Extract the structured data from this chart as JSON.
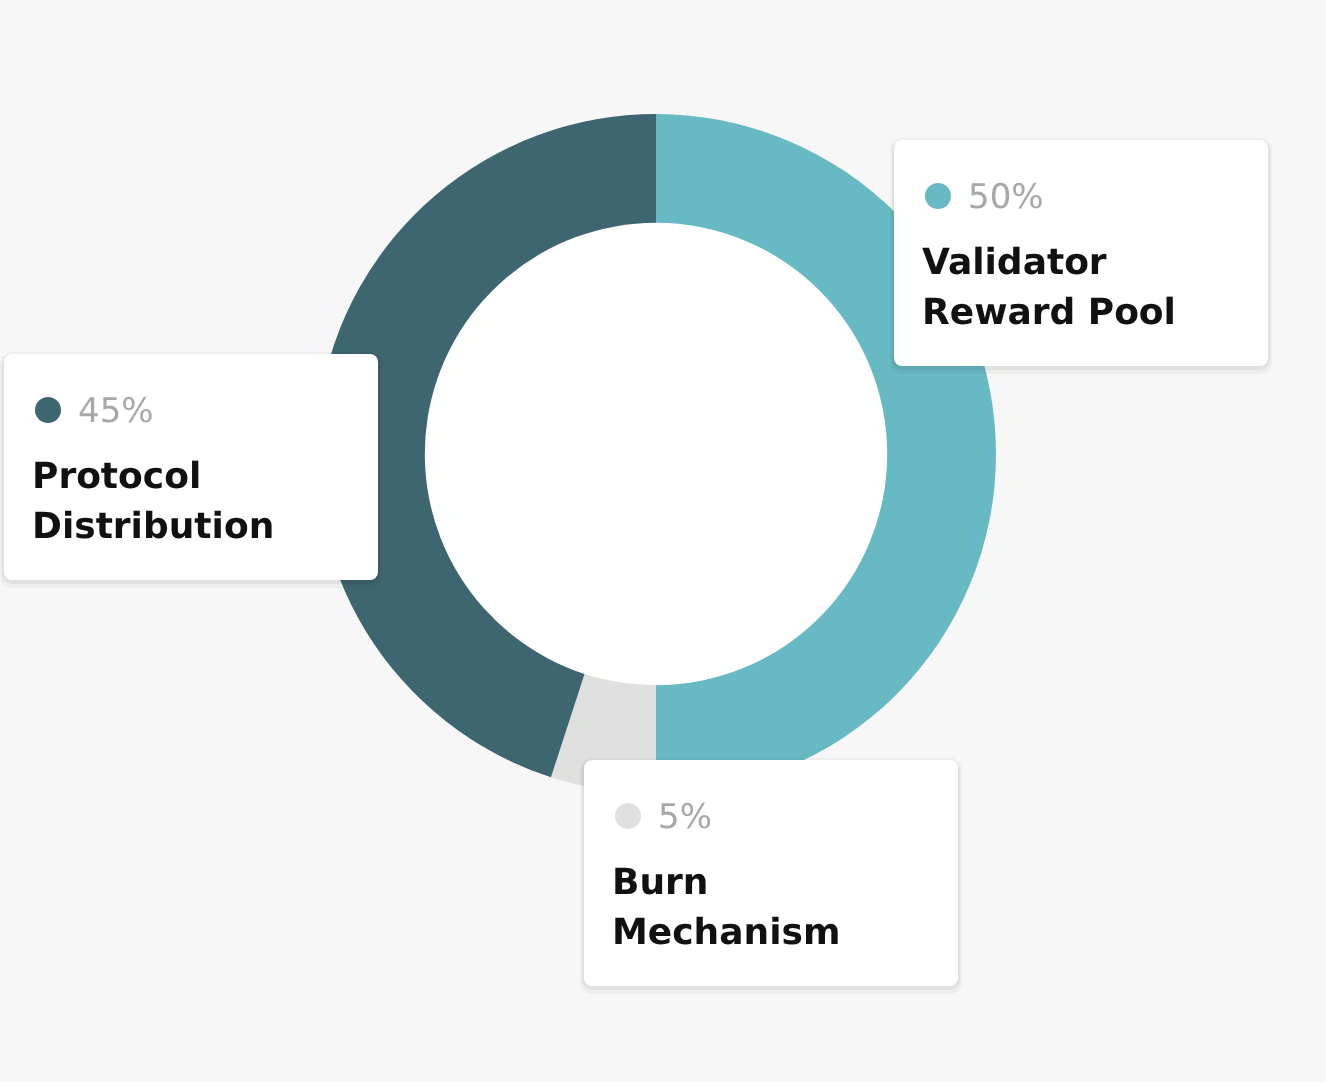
{
  "chart_data": {
    "type": "donut",
    "categories": [
      "Validator Reward Pool",
      "Burn Mechanism",
      "Protocol Distribution"
    ],
    "values": [
      50,
      5,
      45
    ],
    "colors": [
      "#67b9c3",
      "#e0e0e0",
      "#3e6670"
    ],
    "value_labels": [
      "50%",
      "5%",
      "45%"
    ],
    "legend": "bottom left"
  }
}
